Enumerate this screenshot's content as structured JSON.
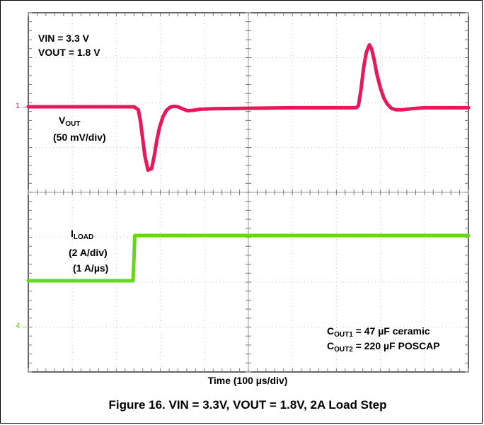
{
  "chart_data": {
    "type": "line",
    "title": "Figure 16. VIN = 3.3V, VOUT = 1.8V, 2A Load Step",
    "xlabel": "Time (100 µs/div)",
    "x_unit": "µs",
    "xlim": [
      0,
      1000
    ],
    "grid": true,
    "series": [
      {
        "name": "VOUT",
        "unit": "mV",
        "channel": "1",
        "color": "#e8185a",
        "scale": "(50 mV/div)",
        "points": [
          [
            0,
            0
          ],
          [
            240,
            0
          ],
          [
            250,
            -6
          ],
          [
            255,
            -30
          ],
          [
            260,
            -65
          ],
          [
            265,
            -100
          ],
          [
            272,
            -128
          ],
          [
            280,
            -125
          ],
          [
            286,
            -100
          ],
          [
            292,
            -68
          ],
          [
            298,
            -42
          ],
          [
            306,
            -20
          ],
          [
            314,
            -7
          ],
          [
            322,
            -1
          ],
          [
            330,
            1
          ],
          [
            340,
            0
          ],
          [
            350,
            -4
          ],
          [
            362,
            -8
          ],
          [
            375,
            -7
          ],
          [
            390,
            -5
          ],
          [
            420,
            -4
          ],
          [
            500,
            -3
          ],
          [
            600,
            -2
          ],
          [
            700,
            -2
          ],
          [
            745,
            -2
          ],
          [
            750,
            2
          ],
          [
            756,
            35
          ],
          [
            762,
            80
          ],
          [
            768,
            110
          ],
          [
            775,
            125
          ],
          [
            780,
            117
          ],
          [
            786,
            94
          ],
          [
            792,
            66
          ],
          [
            800,
            38
          ],
          [
            808,
            17
          ],
          [
            816,
            5
          ],
          [
            825,
            -3
          ],
          [
            835,
            -6
          ],
          [
            850,
            -6
          ],
          [
            870,
            -4
          ],
          [
            900,
            -2
          ],
          [
            1000,
            -2
          ]
        ]
      },
      {
        "name": "ILOAD",
        "unit": "A",
        "channel": "4",
        "color": "#66d81a",
        "scale": "(2 A/div)",
        "slew": "(1 A/µs)",
        "points": [
          [
            0,
            0
          ],
          [
            238,
            0
          ],
          [
            240,
            1
          ],
          [
            242,
            2
          ],
          [
            1000,
            2
          ]
        ]
      }
    ],
    "series_points_note": "",
    "ch1_label": "1",
    "ch4_label": "4"
  },
  "annotations": {
    "vin": "VIN = 3.3 V",
    "vout": "VOUT = 1.8 V",
    "vout_label_main": "V",
    "vout_label_sub": "OUT",
    "vout_scale": "(50 mV/div)",
    "iload_label_main": "I",
    "iload_label_sub": "LOAD",
    "iload_scale": "(2 A/div)",
    "iload_slew": "(1 A/µs)",
    "cout1_main": "C",
    "cout1_sub": "OUT1",
    "cout1_text": " = 47 µF ceramic",
    "cout2_main": "C",
    "cout2_sub": "OUT2",
    "cout2_text": " = 220 µF POSCAP"
  }
}
